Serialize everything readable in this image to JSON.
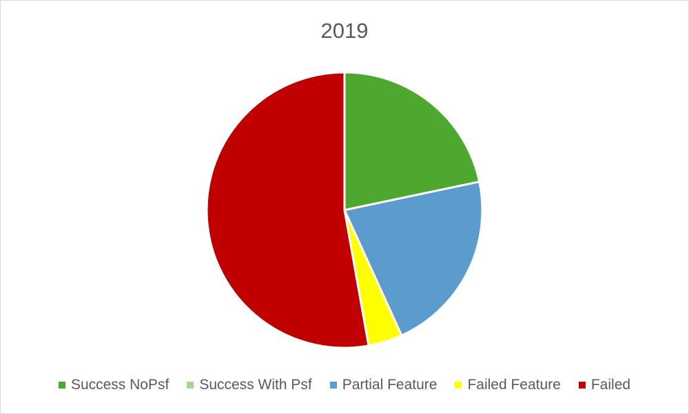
{
  "chart_data": {
    "type": "pie",
    "title": "2019",
    "categories": [
      "Success NoPsf",
      "Success With Psf",
      "Partial Feature",
      "Failed Feature",
      "Failed"
    ],
    "values": [
      21.7,
      0,
      21.5,
      4.0,
      52.8
    ],
    "colors": [
      "#4ea72e",
      "#a0d98f",
      "#5b9bcd",
      "#ffff00",
      "#c00000"
    ],
    "legend": "bottom"
  }
}
